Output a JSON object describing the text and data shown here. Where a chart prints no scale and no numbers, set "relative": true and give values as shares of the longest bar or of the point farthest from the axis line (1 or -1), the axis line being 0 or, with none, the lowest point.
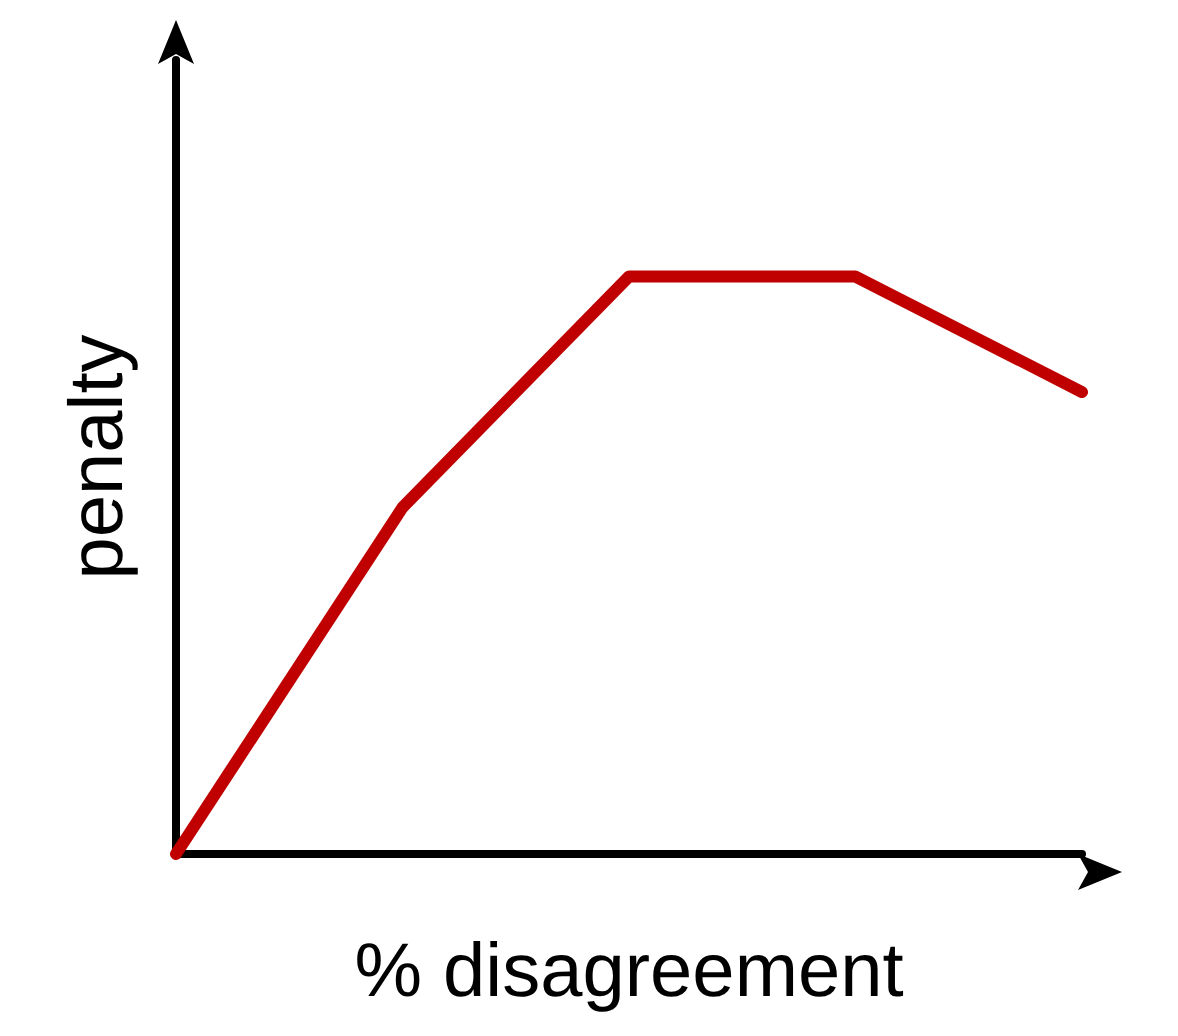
{
  "chart_data": {
    "type": "line",
    "xlabel": "% disagreement",
    "ylabel": "penalty",
    "relative": true,
    "categories": [
      null,
      null,
      null,
      null,
      null
    ],
    "grid": false,
    "series": [
      {
        "color": "#c00000",
        "values": [
          0,
          0.6,
          1,
          1,
          0.8
        ]
      }
    ]
  }
}
